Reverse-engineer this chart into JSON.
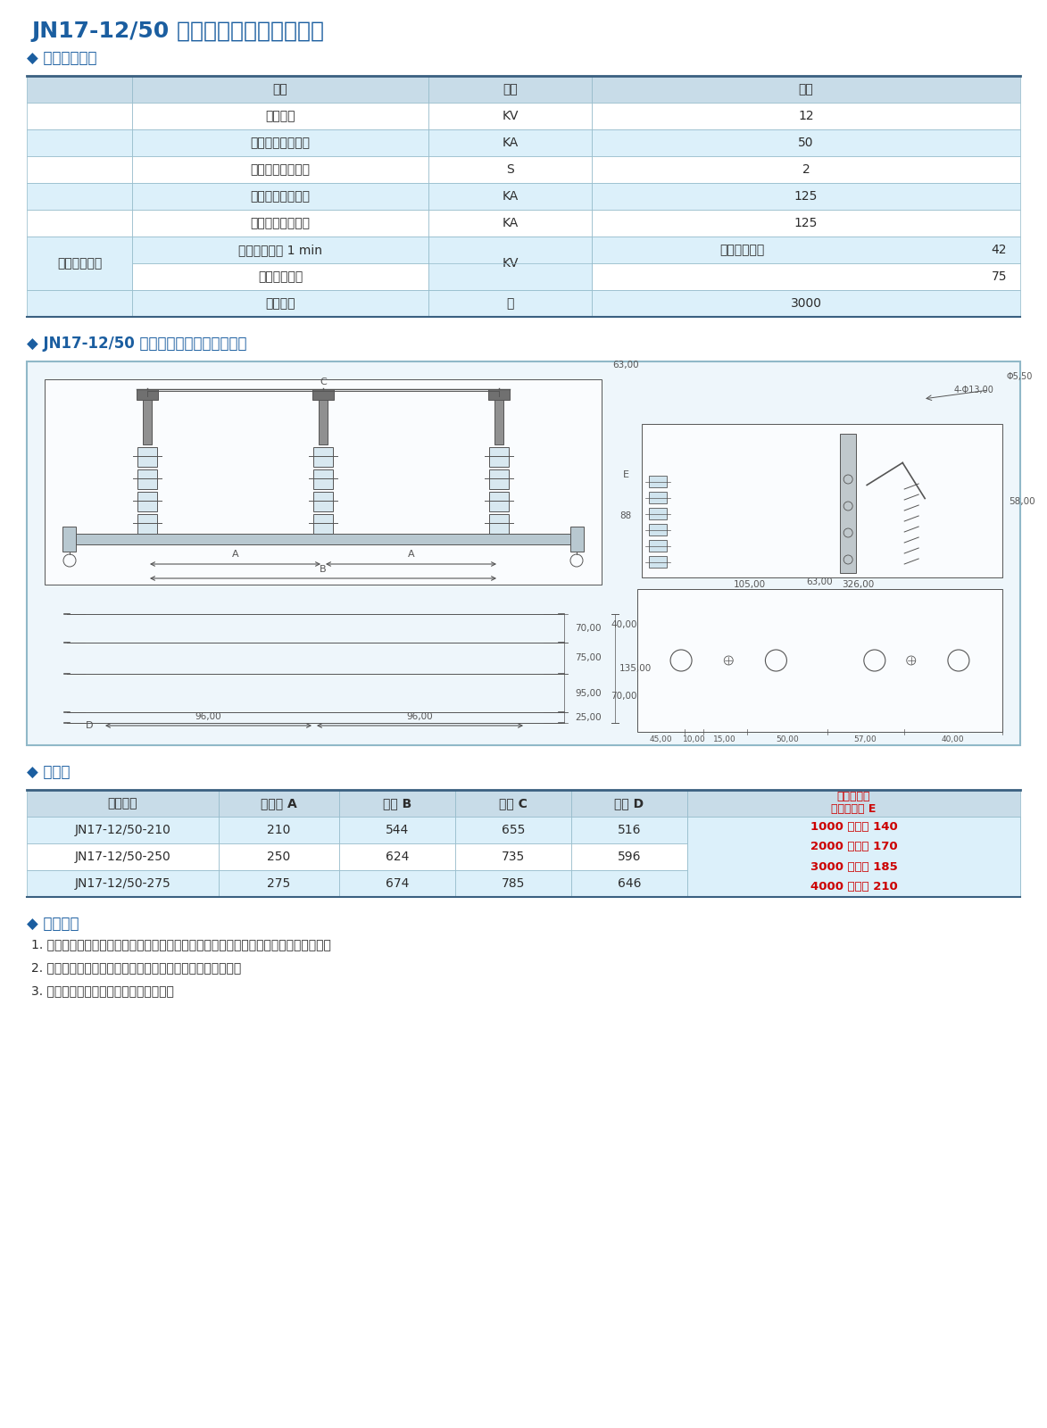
{
  "title": "JN17-12/50 型户内高压交流接地开关",
  "section1_title": "◆ 主要技术参数",
  "section2_title": "◆ JN17-12/50 型接地开关外形及安装尺寸",
  "section3_title": "◆ 配套表",
  "section4_title": "◆ 订购须知",
  "tech_params_header": [
    "项目",
    "单位",
    "数据"
  ],
  "tech_params": [
    [
      "额定电压",
      "KV",
      "12",
      false
    ],
    [
      "额定短时耐受电流",
      "KA",
      "50",
      true
    ],
    [
      "额定短路持续时间",
      "S",
      "2",
      false
    ],
    [
      "额定短路关合电流",
      "KA",
      "125",
      true
    ],
    [
      "额定峰值耐受电流",
      "KA",
      "125",
      false
    ]
  ],
  "insulation_row_label": "额定绝缘水平",
  "insulation_rows": [
    [
      "工频耐受电压 1 min",
      "KV",
      "极对地及相间",
      "42",
      true
    ],
    [
      "雷电冲击电压",
      "",
      "",
      "75",
      false
    ]
  ],
  "mechanical_row": [
    "机械寿命",
    "次",
    "3000",
    true
  ],
  "accessories_header": [
    "产品型号",
    "相间距 A",
    "支架 B",
    "主轴 C",
    "孔距 D",
    "高原型配比\n传感器高度 E"
  ],
  "accessories_data": [
    [
      "JN17-12/50-210",
      "210",
      "544",
      "655",
      "516",
      "1000 米以下 140\n2000 米以下 170\n3000 米以下 185\n4000 米以下 210"
    ],
    [
      "JN17-12/50-250",
      "250",
      "624",
      "735",
      "596",
      ""
    ],
    [
      "JN17-12/50-275",
      "275",
      "674",
      "785",
      "646",
      ""
    ]
  ],
  "order_notes": [
    "1. 订购接地开关时，须注明产品型号、相距及是否配带电显示器（并注明显示器型号）。",
    "2. 用户请注明接地开关在柜内安装时动、静触头的上下位置。",
    "3. 用户如有特殊要求，请与我公司联系。"
  ],
  "title_color": "#1B5EA0",
  "header_bg": "#C8DCE8",
  "alt_row_bg": "#DCF0FA",
  "white_bg": "#FFFFFF",
  "border_color": "#90B8C8",
  "text_color": "#2C2C2C",
  "section_title_color": "#1B5EA0",
  "red_text_color": "#CC0000",
  "diagram_bg": "#EEF6FB",
  "page_bg": "#FFFFFF"
}
